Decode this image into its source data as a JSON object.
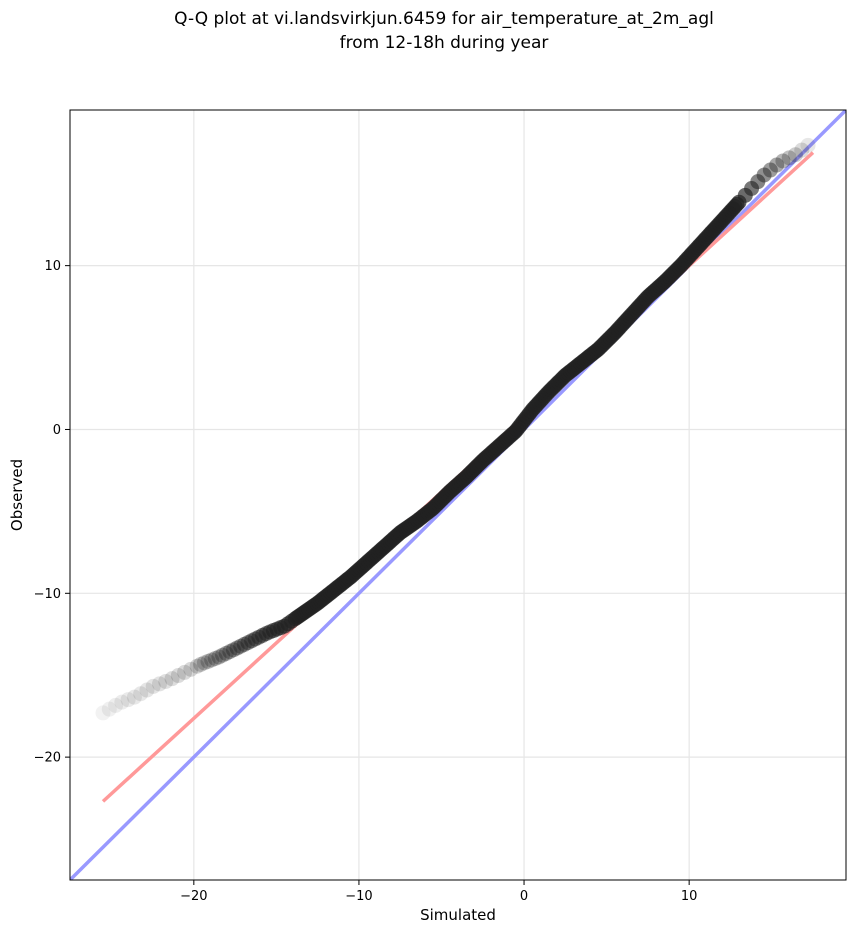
{
  "chart_data": {
    "type": "scatter",
    "title_lines": [
      "Q-Q plot at vi.landsvirkjun.6459 for air_temperature_at_2m_agl",
      "from 12-18h during year"
    ],
    "xlabel": "Simulated",
    "ylabel": "Observed",
    "xlim": [
      -27.5,
      19.5
    ],
    "ylim": [
      -27.5,
      19.5
    ],
    "xticks": [
      -20,
      -10,
      0,
      10
    ],
    "yticks": [
      -20,
      -10,
      0,
      10
    ],
    "xtick_labels": [
      "−20",
      "−10",
      "0",
      "10"
    ],
    "ytick_labels": [
      "−20",
      "−10",
      "0",
      "10"
    ],
    "grid": true,
    "quantile_curve": {
      "x": [
        -25.5,
        -24.5,
        -23.5,
        -22.5,
        -21.5,
        -20.5,
        -19.5,
        -18.5,
        -17.5,
        -16.5,
        -15.5,
        -14.5,
        -13.5,
        -12.5,
        -11.5,
        -10.5,
        -9.5,
        -8.5,
        -7.5,
        -6.5,
        -5.5,
        -4.5,
        -3.5,
        -2.5,
        -1.5,
        -0.5,
        0.5,
        1.5,
        2.5,
        3.5,
        4.5,
        5.5,
        6.5,
        7.5,
        8.5,
        9.5,
        10.5,
        11.5,
        12.5,
        13.5,
        14.5,
        15.5,
        16.5,
        17.4
      ],
      "y": [
        -17.3,
        -16.7,
        -16.3,
        -15.7,
        -15.3,
        -14.8,
        -14.3,
        -13.9,
        -13.4,
        -12.9,
        -12.4,
        -12.0,
        -11.3,
        -10.6,
        -9.8,
        -9.0,
        -8.1,
        -7.2,
        -6.3,
        -5.6,
        -4.8,
        -3.8,
        -2.9,
        -1.9,
        -1.0,
        -0.1,
        1.2,
        2.3,
        3.3,
        4.1,
        4.9,
        5.9,
        7.0,
        8.1,
        9.0,
        10.0,
        11.1,
        12.2,
        13.3,
        14.4,
        15.5,
        16.3,
        16.8,
        17.5
      ]
    },
    "fit_line": {
      "x": [
        -25.5,
        17.5
      ],
      "y": [
        -22.7,
        16.9
      ],
      "color": "#ff9999"
    },
    "identity_line": {
      "x": [
        -27.5,
        19.5
      ],
      "y": [
        -27.5,
        19.5
      ],
      "color": "#9999ff"
    }
  }
}
